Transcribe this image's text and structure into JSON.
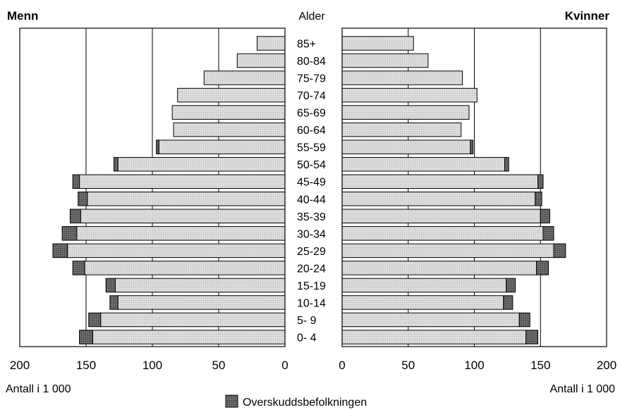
{
  "chart_data": {
    "type": "bar",
    "orientation": "horizontal",
    "subtype": "population-pyramid",
    "stacked": true,
    "left_panel_title": "Menn",
    "right_panel_title": "Kvinner",
    "center_label": "Alder",
    "categories": [
      "85+",
      "80-84",
      "75-79",
      "70-74",
      "65-69",
      "60-64",
      "55-59",
      "50-54",
      "45-49",
      "40-44",
      "35-39",
      "30-34",
      "25-29",
      "20-24",
      "15-19",
      "10-14",
      "5- 9",
      "0- 4"
    ],
    "series": {
      "menn": {
        "base": [
          21,
          36,
          61,
          81,
          85,
          84,
          95,
          126,
          155,
          149,
          154,
          157,
          164,
          151,
          128,
          126,
          139,
          145
        ],
        "surplus": [
          0,
          0,
          0,
          0,
          0,
          0,
          2,
          3,
          5,
          7,
          8,
          11,
          11,
          9,
          7,
          6,
          9,
          10
        ]
      },
      "kvinner": {
        "base": [
          54,
          65,
          91,
          102,
          96,
          90,
          97,
          123,
          148,
          146,
          150,
          152,
          160,
          147,
          124,
          122,
          134,
          139
        ],
        "surplus": [
          0,
          0,
          0,
          0,
          0,
          0,
          2,
          3,
          4,
          5,
          7,
          8,
          9,
          9,
          7,
          7,
          8,
          9
        ]
      }
    },
    "left_axis_ticks": [
      "200",
      "150",
      "100",
      "50",
      "0"
    ],
    "right_axis_ticks": [
      "0",
      "50",
      "100",
      "150",
      "200"
    ],
    "left_axis_label": "Antall i 1 000",
    "right_axis_label": "Antall i 1 000",
    "xlim": [
      0,
      200
    ],
    "legend": {
      "label": "Overskuddsbefolkningen",
      "placement": "bottom-center"
    },
    "colors": {
      "base": "#d9d9d9",
      "surplus": "#585858",
      "outline": "#000000",
      "grid": "#000000"
    },
    "grid": true
  }
}
